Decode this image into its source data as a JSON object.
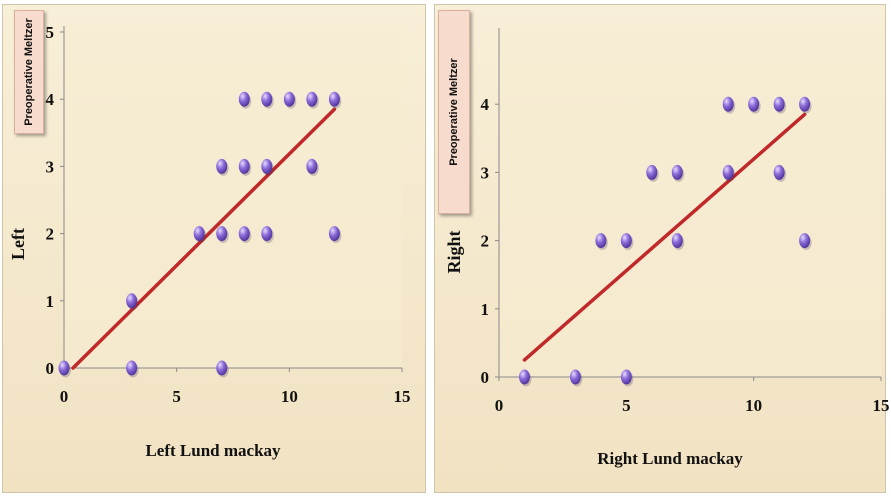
{
  "chart_data": [
    {
      "type": "scatter",
      "panel": "left",
      "ylabel_box": "Preoperative Meltzer",
      "ylabel": "Left",
      "xlabel": "Left Lund mackay",
      "xlim": [
        0,
        15
      ],
      "ylim": [
        0,
        5
      ],
      "xticks": [
        0,
        5,
        10,
        15
      ],
      "yticks": [
        0,
        1,
        2,
        3,
        4,
        5
      ],
      "grid": false,
      "marker_color": "#8b6bd8",
      "trendline_color": "#c0282a",
      "background_color": "#f6ecd4",
      "points": [
        {
          "x": 0,
          "y": 0
        },
        {
          "x": 3,
          "y": 0
        },
        {
          "x": 7,
          "y": 0
        },
        {
          "x": 3,
          "y": 1
        },
        {
          "x": 6,
          "y": 2
        },
        {
          "x": 7,
          "y": 2
        },
        {
          "x": 8,
          "y": 2
        },
        {
          "x": 9,
          "y": 2
        },
        {
          "x": 12,
          "y": 2
        },
        {
          "x": 7,
          "y": 3
        },
        {
          "x": 8,
          "y": 3
        },
        {
          "x": 9,
          "y": 3
        },
        {
          "x": 11,
          "y": 3
        },
        {
          "x": 8,
          "y": 4
        },
        {
          "x": 9,
          "y": 4
        },
        {
          "x": 10,
          "y": 4
        },
        {
          "x": 11,
          "y": 4
        },
        {
          "x": 12,
          "y": 4
        }
      ],
      "trendline": {
        "x": [
          0.4,
          12
        ],
        "y": [
          0,
          3.85
        ]
      }
    },
    {
      "type": "scatter",
      "panel": "right",
      "ylabel_box": "Preoperative Meltzer",
      "ylabel": "Right",
      "xlabel": "Right Lund mackay",
      "xlim": [
        0,
        15
      ],
      "ylim": [
        0,
        5
      ],
      "xticks": [
        0,
        5,
        10,
        15
      ],
      "yticks": [
        0,
        1,
        2,
        3,
        4
      ],
      "grid": false,
      "marker_color": "#8b6bd8",
      "trendline_color": "#c0282a",
      "background_color": "#f6ecd4",
      "points": [
        {
          "x": 1,
          "y": 0
        },
        {
          "x": 3,
          "y": 0
        },
        {
          "x": 5,
          "y": 0
        },
        {
          "x": 4,
          "y": 2
        },
        {
          "x": 5,
          "y": 2
        },
        {
          "x": 7,
          "y": 2
        },
        {
          "x": 12,
          "y": 2
        },
        {
          "x": 6,
          "y": 3
        },
        {
          "x": 7,
          "y": 3
        },
        {
          "x": 9,
          "y": 3
        },
        {
          "x": 11,
          "y": 3
        },
        {
          "x": 9,
          "y": 4
        },
        {
          "x": 10,
          "y": 4
        },
        {
          "x": 11,
          "y": 4
        },
        {
          "x": 12,
          "y": 4
        }
      ],
      "trendline": {
        "x": [
          1,
          12
        ],
        "y": [
          0.25,
          3.85
        ]
      }
    }
  ]
}
